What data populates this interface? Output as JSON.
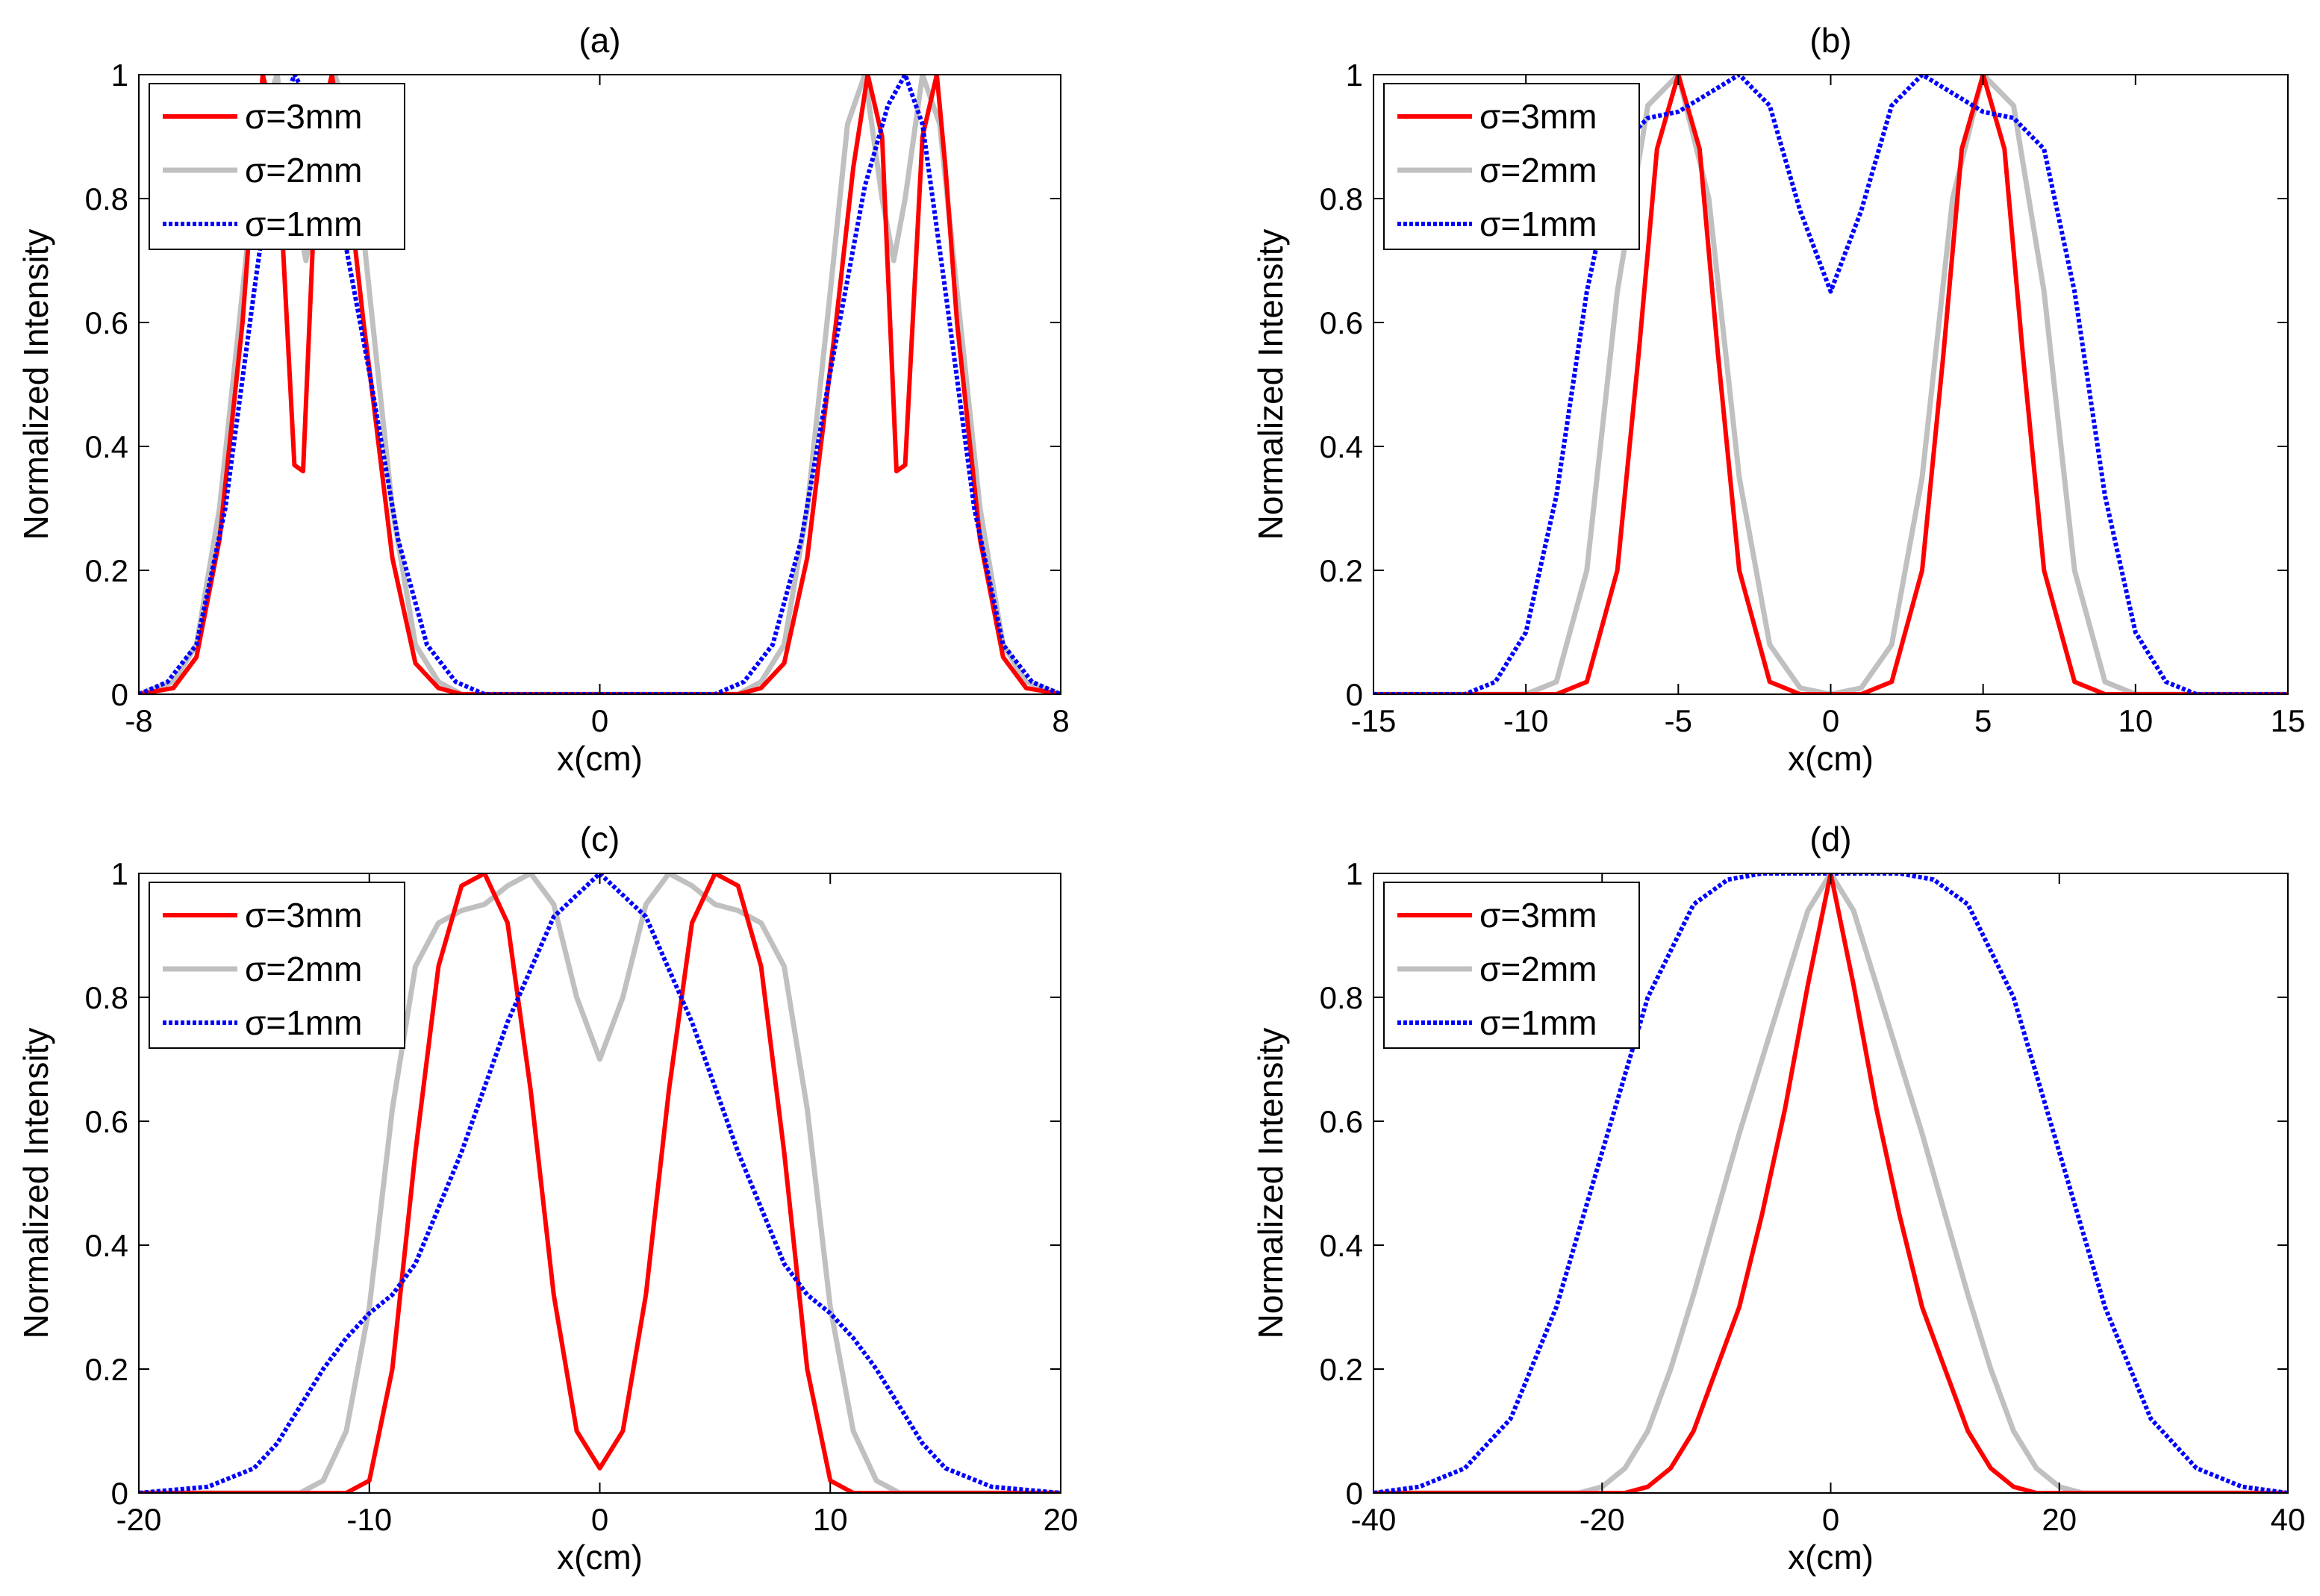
{
  "chart_data": [
    {
      "type": "line",
      "title": "(a)",
      "xlabel": "x(cm)",
      "ylabel": "Normalized Intensity",
      "xlim": [
        -8,
        8
      ],
      "ylim": [
        0,
        1
      ],
      "xticks": [
        -8,
        0,
        8
      ],
      "yticks": [
        0,
        0.2,
        0.4,
        0.6,
        0.8,
        1
      ],
      "xtick_labels": [
        "-8",
        "0",
        "8"
      ],
      "ytick_labels": [
        "0",
        "0.2",
        "0.4",
        "0.6",
        "0.8",
        "1"
      ],
      "legend_position": "top-left",
      "series": [
        {
          "name": "σ=3mm",
          "color": "#ff0000",
          "style": "solid",
          "x": [
            -8,
            -7.4,
            -7.0,
            -6.6,
            -6.2,
            -6.0,
            -5.85,
            -5.6,
            -5.3,
            -5.15,
            -4.9,
            -4.65,
            -4.4,
            -4.1,
            -3.9,
            -3.6,
            -3.2,
            -2.8,
            -2.4,
            2.4,
            2.8,
            3.2,
            3.6,
            3.9,
            4.1,
            4.4,
            4.65,
            4.9,
            5.15,
            5.3,
            5.6,
            5.85,
            6.0,
            6.2,
            6.6,
            7.0,
            7.4,
            8
          ],
          "y": [
            0,
            0.01,
            0.06,
            0.25,
            0.6,
            0.85,
            1.0,
            0.9,
            0.37,
            0.36,
            0.9,
            1.0,
            0.85,
            0.6,
            0.45,
            0.22,
            0.05,
            0.01,
            0,
            0,
            0.01,
            0.05,
            0.22,
            0.45,
            0.6,
            0.85,
            1.0,
            0.9,
            0.36,
            0.37,
            0.9,
            1.0,
            0.85,
            0.6,
            0.25,
            0.06,
            0.01,
            0
          ]
        },
        {
          "name": "σ=2mm",
          "color": "#c0c0c0",
          "style": "solid",
          "x": [
            -8,
            -7.4,
            -7.0,
            -6.6,
            -6.2,
            -5.9,
            -5.6,
            -5.3,
            -5.1,
            -4.9,
            -4.6,
            -4.3,
            -4.0,
            -3.6,
            -3.2,
            -2.8,
            -2.4,
            2.4,
            2.8,
            3.2,
            3.6,
            4.0,
            4.3,
            4.6,
            4.9,
            5.1,
            5.3,
            5.6,
            5.9,
            6.2,
            6.6,
            7.0,
            7.4,
            8
          ],
          "y": [
            0,
            0.02,
            0.08,
            0.3,
            0.65,
            0.92,
            1.0,
            0.8,
            0.7,
            0.8,
            1.0,
            0.92,
            0.65,
            0.3,
            0.08,
            0.02,
            0,
            0,
            0.02,
            0.08,
            0.3,
            0.65,
            0.92,
            1.0,
            0.8,
            0.7,
            0.8,
            1.0,
            0.92,
            0.65,
            0.3,
            0.08,
            0.02,
            0
          ]
        },
        {
          "name": "σ=1mm",
          "color": "#0000ff",
          "style": "dotted",
          "x": [
            -8,
            -7.5,
            -7.0,
            -6.5,
            -6.0,
            -5.6,
            -5.3,
            -5.0,
            -4.6,
            -4.0,
            -3.5,
            -3.0,
            -2.5,
            -2.0,
            -1.5,
            1.5,
            2.0,
            2.5,
            3.0,
            3.5,
            4.0,
            4.6,
            5.0,
            5.3,
            5.6,
            6.0,
            6.5,
            7.0,
            7.5,
            8
          ],
          "y": [
            0,
            0.02,
            0.08,
            0.3,
            0.65,
            0.92,
            1.0,
            0.95,
            0.82,
            0.52,
            0.25,
            0.08,
            0.02,
            0,
            0,
            0,
            0,
            0.02,
            0.08,
            0.25,
            0.52,
            0.82,
            0.95,
            1.0,
            0.92,
            0.65,
            0.3,
            0.08,
            0.02,
            0
          ]
        }
      ]
    },
    {
      "type": "line",
      "title": "(b)",
      "xlabel": "x(cm)",
      "ylabel": "Normalized Intensity",
      "xlim": [
        -15,
        15
      ],
      "ylim": [
        0,
        1
      ],
      "xticks": [
        -15,
        -10,
        -5,
        0,
        5,
        10,
        15
      ],
      "yticks": [
        0,
        0.2,
        0.4,
        0.6,
        0.8,
        1
      ],
      "xtick_labels": [
        "-15",
        "-10",
        "-5",
        "0",
        "5",
        "10",
        "15"
      ],
      "ytick_labels": [
        "0",
        "0.2",
        "0.4",
        "0.6",
        "0.8",
        "1"
      ],
      "legend_position": "top-left",
      "series": [
        {
          "name": "σ=3mm",
          "color": "#ff0000",
          "style": "solid",
          "x": [
            -15,
            -9,
            -8,
            -7,
            -6.3,
            -5.7,
            -5,
            -4.3,
            -3.7,
            -3,
            -2,
            -1,
            0,
            1,
            2,
            3,
            3.7,
            4.3,
            5,
            5.7,
            6.3,
            7,
            8,
            9,
            15
          ],
          "y": [
            0,
            0,
            0.02,
            0.2,
            0.55,
            0.88,
            1.0,
            0.88,
            0.55,
            0.2,
            0.02,
            0,
            0,
            0,
            0.02,
            0.2,
            0.55,
            0.88,
            1.0,
            0.88,
            0.55,
            0.2,
            0.02,
            0,
            0
          ]
        },
        {
          "name": "σ=2mm",
          "color": "#c0c0c0",
          "style": "solid",
          "x": [
            -15,
            -10,
            -9,
            -8,
            -7,
            -6,
            -5,
            -4,
            -3,
            -2,
            -1,
            0,
            1,
            2,
            3,
            4,
            5,
            6,
            7,
            8,
            9,
            10,
            15
          ],
          "y": [
            0,
            0,
            0.02,
            0.2,
            0.65,
            0.95,
            1.0,
            0.8,
            0.35,
            0.08,
            0.01,
            0,
            0.01,
            0.08,
            0.35,
            0.8,
            1.0,
            0.95,
            0.65,
            0.2,
            0.02,
            0,
            0
          ]
        },
        {
          "name": "σ=1mm",
          "color": "#0000ff",
          "style": "dotted",
          "x": [
            -15,
            -12,
            -11,
            -10,
            -9,
            -8,
            -7,
            -6,
            -5,
            -4,
            -3,
            -2,
            -1,
            0,
            1,
            2,
            3,
            4,
            5,
            6,
            7,
            8,
            9,
            10,
            11,
            12,
            15
          ],
          "y": [
            0,
            0,
            0.02,
            0.1,
            0.32,
            0.65,
            0.88,
            0.93,
            0.94,
            0.97,
            1.0,
            0.95,
            0.78,
            0.65,
            0.78,
            0.95,
            1.0,
            0.97,
            0.94,
            0.93,
            0.88,
            0.65,
            0.32,
            0.1,
            0.02,
            0,
            0
          ]
        }
      ]
    },
    {
      "type": "line",
      "title": "(c)",
      "xlabel": "x(cm)",
      "ylabel": "Normalized Intensity",
      "xlim": [
        -20,
        20
      ],
      "ylim": [
        0,
        1
      ],
      "xticks": [
        -20,
        -10,
        0,
        10,
        20
      ],
      "yticks": [
        0,
        0.2,
        0.4,
        0.6,
        0.8,
        1
      ],
      "xtick_labels": [
        "-20",
        "-10",
        "0",
        "10",
        "20"
      ],
      "ytick_labels": [
        "0",
        "0.2",
        "0.4",
        "0.6",
        "0.8",
        "1"
      ],
      "legend_position": "top-left",
      "series": [
        {
          "name": "σ=3mm",
          "color": "#ff0000",
          "style": "solid",
          "x": [
            -20,
            -11,
            -10,
            -9,
            -8,
            -7,
            -6,
            -5,
            -4,
            -3,
            -2,
            -1,
            0,
            1,
            2,
            3,
            4,
            5,
            6,
            7,
            8,
            9,
            10,
            11,
            20
          ],
          "y": [
            0,
            0,
            0.02,
            0.2,
            0.55,
            0.85,
            0.98,
            1.0,
            0.92,
            0.65,
            0.32,
            0.1,
            0.04,
            0.1,
            0.32,
            0.65,
            0.92,
            1.0,
            0.98,
            0.85,
            0.55,
            0.2,
            0.02,
            0,
            0
          ]
        },
        {
          "name": "σ=2mm",
          "color": "#c0c0c0",
          "style": "solid",
          "x": [
            -20,
            -13,
            -12,
            -11,
            -10,
            -9,
            -8,
            -7,
            -6,
            -5,
            -4,
            -3,
            -2,
            -1,
            0,
            1,
            2,
            3,
            4,
            5,
            6,
            7,
            8,
            9,
            10,
            11,
            12,
            13,
            20
          ],
          "y": [
            0,
            0,
            0.02,
            0.1,
            0.3,
            0.62,
            0.85,
            0.92,
            0.94,
            0.95,
            0.98,
            1.0,
            0.95,
            0.8,
            0.7,
            0.8,
            0.95,
            1.0,
            0.98,
            0.95,
            0.94,
            0.92,
            0.85,
            0.62,
            0.3,
            0.1,
            0.02,
            0,
            0
          ]
        },
        {
          "name": "σ=1mm",
          "color": "#0000ff",
          "style": "dotted",
          "x": [
            -20,
            -17,
            -15,
            -14,
            -13,
            -12,
            -11,
            -10,
            -9,
            -8,
            -6,
            -4,
            -2,
            0,
            2,
            4,
            6,
            8,
            9,
            10,
            11,
            12,
            13,
            14,
            15,
            17,
            20
          ],
          "y": [
            0,
            0.01,
            0.04,
            0.08,
            0.14,
            0.2,
            0.25,
            0.29,
            0.32,
            0.37,
            0.55,
            0.76,
            0.93,
            1.0,
            0.93,
            0.76,
            0.55,
            0.37,
            0.32,
            0.29,
            0.25,
            0.2,
            0.14,
            0.08,
            0.04,
            0.01,
            0
          ]
        }
      ]
    },
    {
      "type": "line",
      "title": "(d)",
      "xlabel": "x(cm)",
      "ylabel": "Normalized Intensity",
      "xlim": [
        -40,
        40
      ],
      "ylim": [
        0,
        1
      ],
      "xticks": [
        -40,
        -20,
        0,
        20,
        40
      ],
      "yticks": [
        0,
        0.2,
        0.4,
        0.6,
        0.8,
        1
      ],
      "xtick_labels": [
        "-40",
        "-20",
        "0",
        "20",
        "40"
      ],
      "ytick_labels": [
        "0",
        "0.2",
        "0.4",
        "0.6",
        "0.8",
        "1"
      ],
      "legend_position": "top-left",
      "series": [
        {
          "name": "σ=3mm",
          "color": "#ff0000",
          "style": "solid",
          "x": [
            -40,
            -18,
            -16,
            -14,
            -12,
            -10,
            -8,
            -6,
            -4,
            -2,
            0,
            2,
            4,
            6,
            8,
            10,
            12,
            14,
            16,
            18,
            40
          ],
          "y": [
            0,
            0,
            0.01,
            0.04,
            0.1,
            0.2,
            0.3,
            0.45,
            0.62,
            0.82,
            1.0,
            0.82,
            0.62,
            0.45,
            0.3,
            0.2,
            0.1,
            0.04,
            0.01,
            0,
            0
          ]
        },
        {
          "name": "σ=2mm",
          "color": "#c0c0c0",
          "style": "solid",
          "x": [
            -40,
            -22,
            -20,
            -18,
            -16,
            -14,
            -12,
            -10,
            -8,
            -6,
            -4,
            -2,
            0,
            2,
            4,
            6,
            8,
            10,
            12,
            14,
            16,
            18,
            20,
            22,
            40
          ],
          "y": [
            0,
            0,
            0.01,
            0.04,
            0.1,
            0.2,
            0.32,
            0.45,
            0.58,
            0.7,
            0.82,
            0.94,
            1.0,
            0.94,
            0.82,
            0.7,
            0.58,
            0.45,
            0.32,
            0.2,
            0.1,
            0.04,
            0.01,
            0,
            0
          ]
        },
        {
          "name": "σ=1mm",
          "color": "#0000ff",
          "style": "dotted",
          "x": [
            -40,
            -36,
            -32,
            -28,
            -24,
            -20,
            -16,
            -12,
            -9,
            -6,
            -3,
            0,
            3,
            6,
            9,
            12,
            16,
            20,
            24,
            28,
            32,
            36,
            40
          ],
          "y": [
            0,
            0.01,
            0.04,
            0.12,
            0.3,
            0.55,
            0.8,
            0.95,
            0.99,
            1.0,
            1.0,
            1.0,
            1.0,
            1.0,
            0.99,
            0.95,
            0.8,
            0.55,
            0.3,
            0.12,
            0.04,
            0.01,
            0
          ]
        }
      ]
    }
  ]
}
